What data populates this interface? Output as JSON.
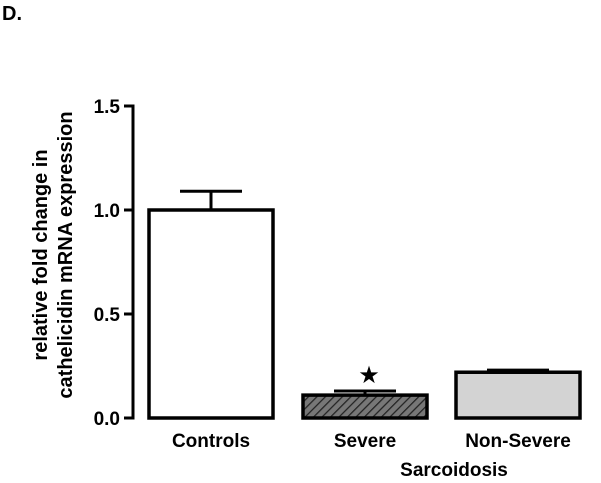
{
  "panel_label": "D.",
  "chart_data": {
    "type": "bar",
    "categories": [
      "Controls",
      "Severe",
      "Non-Severe"
    ],
    "values": [
      1.0,
      0.11,
      0.22
    ],
    "errors": [
      0.09,
      0.02,
      0.01
    ],
    "fills": [
      "#ffffff",
      "hatched",
      "#d3d3d3"
    ],
    "significance": [
      {
        "category": "Severe",
        "marker": "★"
      }
    ],
    "group_label": "Sarcoidosis",
    "group_categories": [
      "Severe",
      "Non-Severe"
    ],
    "ylabel": [
      "relative  fold change in",
      "cathelicidin mRNA expression"
    ],
    "xlabel": "",
    "ylim": [
      0,
      1.5
    ],
    "yticks": [
      0.0,
      0.5,
      1.0,
      1.5
    ],
    "ytick_labels": [
      "0.0",
      "0.5",
      "1.0",
      "1.5"
    ],
    "grid": false,
    "legend": "none"
  }
}
